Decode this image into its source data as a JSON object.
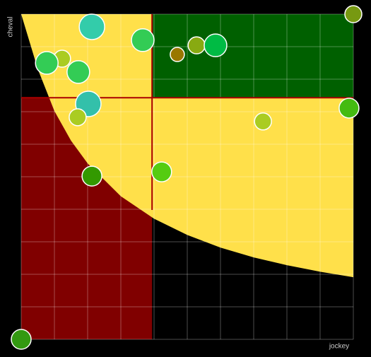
{
  "chart_data": {
    "type": "bubble",
    "x_label": "jockey",
    "y_label": "cheval",
    "xlim": [
      0,
      100
    ],
    "ylim": [
      0,
      100
    ],
    "xticks": [
      0,
      10,
      20,
      30,
      40,
      50,
      60,
      70,
      80,
      90,
      100
    ],
    "yticks": [
      0,
      10,
      20,
      30,
      40,
      50,
      60,
      70,
      80,
      90,
      100
    ],
    "grid": true,
    "zones": {
      "x_split": 39.4,
      "y_split": 74.3,
      "low_color": "#800000",
      "high_color": "#006000",
      "curve_color": "#ffe04a",
      "split_color": "#aa0000",
      "curve_x": [
        0,
        5,
        10,
        15,
        20,
        30,
        40,
        50,
        60,
        70,
        80,
        90,
        100
      ],
      "curve_y": [
        100,
        83.1,
        70.2,
        61.1,
        54.1,
        44.0,
        37.1,
        32.1,
        28.2,
        25.2,
        22.8,
        20.8,
        19.1
      ]
    },
    "series": [
      {
        "x": [
          21.3,
          36.6,
          12.3,
          7.7,
          17.2,
          20.2,
          17.0,
          21.3,
          42.3,
          47.0,
          52.8,
          58.5,
          72.8,
          98.7,
          100,
          0
        ],
        "values": [
          96.1,
          92.0,
          86.3,
          85.0,
          82.2,
          72.4,
          68.3,
          50.2,
          51.5,
          87.6,
          90.4,
          90.4,
          67.0,
          71.1,
          100,
          0
        ],
        "sizes": [
          18,
          16,
          12,
          16,
          16,
          18,
          12,
          14,
          14,
          10,
          12,
          16,
          12,
          14,
          12,
          14
        ],
        "colors": [
          "#33ccaa",
          "#33cc55",
          "#aacc22",
          "#33cc55",
          "#33cc55",
          "#33c0aa",
          "#aacc22",
          "#339900",
          "#55cc11",
          "#997700",
          "#88aa11",
          "#00bb44",
          "#aacc22",
          "#44bb11",
          "#779911",
          "#339911"
        ]
      }
    ]
  }
}
